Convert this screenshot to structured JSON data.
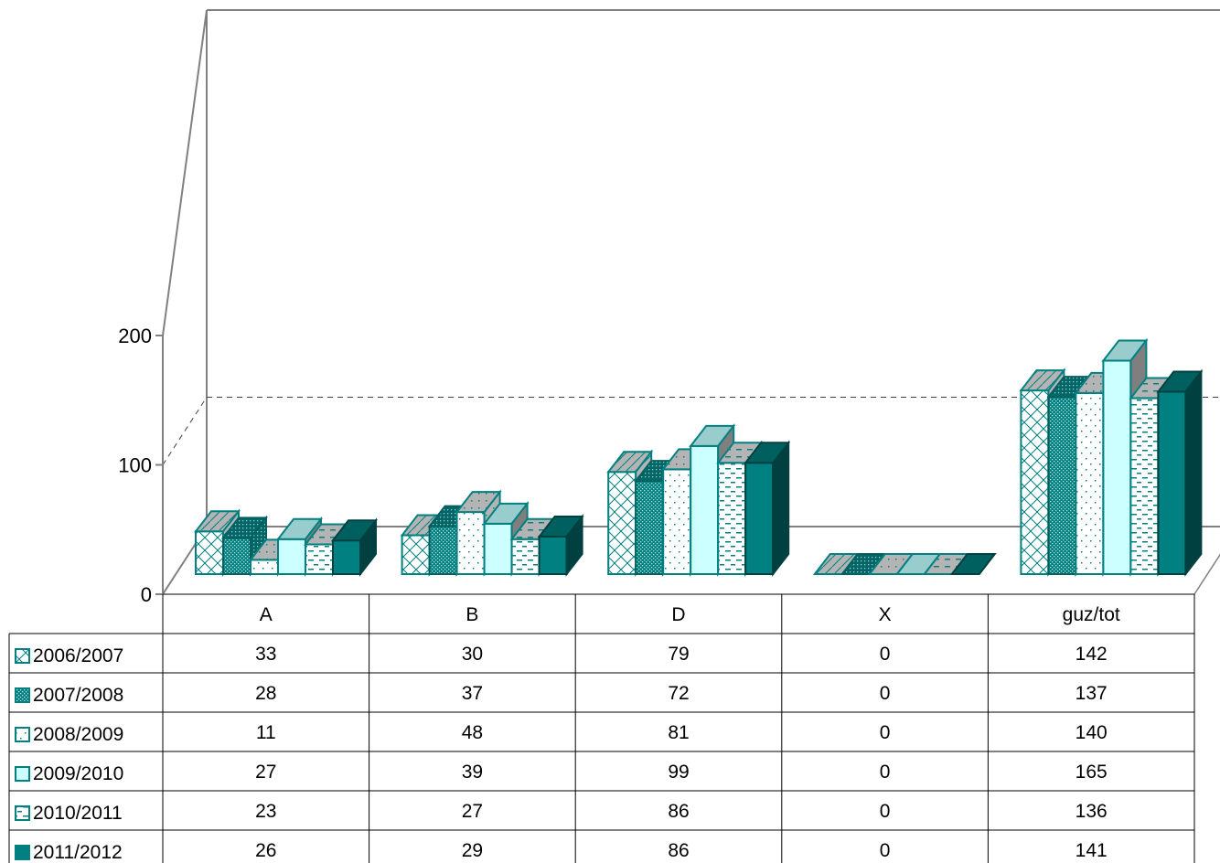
{
  "chart_data": {
    "type": "bar",
    "categories": [
      "A",
      "B",
      "D",
      "X",
      "guz/tot"
    ],
    "series": [
      {
        "name": "2006/2007",
        "values": [
          33,
          30,
          79,
          0,
          142
        ],
        "color": "#ffffff",
        "pattern": "diagonal-cross"
      },
      {
        "name": "2007/2008",
        "values": [
          28,
          37,
          72,
          0,
          137
        ],
        "color": "#008080",
        "pattern": "dots-dense"
      },
      {
        "name": "2008/2009",
        "values": [
          11,
          48,
          81,
          0,
          140
        ],
        "color": "#ffffff",
        "pattern": "dots-sparse"
      },
      {
        "name": "2009/2010",
        "values": [
          27,
          39,
          99,
          0,
          165
        ],
        "color": "#ccffff",
        "pattern": "solid"
      },
      {
        "name": "2010/2011",
        "values": [
          23,
          27,
          86,
          0,
          136
        ],
        "color": "#ffffff",
        "pattern": "dashes"
      },
      {
        "name": "2011/2012",
        "values": [
          26,
          29,
          86,
          0,
          141
        ],
        "color": "#008080",
        "pattern": "solid"
      }
    ],
    "y_ticks": [
      "0",
      "100",
      "200"
    ],
    "ylim": [
      0,
      200
    ],
    "grid": true,
    "grid_style": "dashed",
    "legend": "data-table-left",
    "data_table": true
  }
}
